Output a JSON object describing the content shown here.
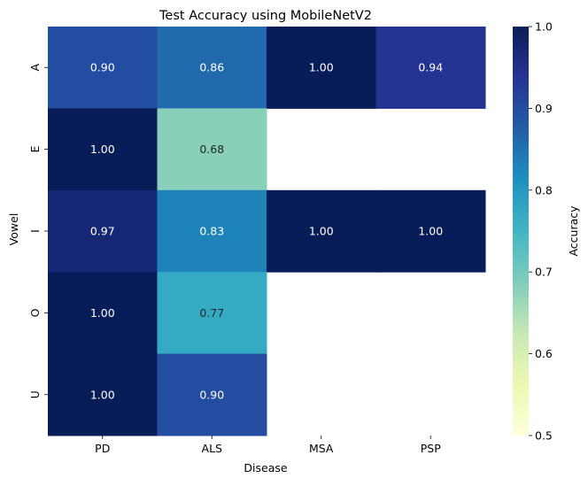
{
  "chart_data": {
    "type": "heatmap",
    "title": "Test Accuracy using MobileNetV2",
    "xlabel": "Disease",
    "ylabel": "Vowel",
    "x_categories": [
      "PD",
      "ALS",
      "MSA",
      "PSP"
    ],
    "y_categories": [
      "A",
      "E",
      "I",
      "O",
      "U"
    ],
    "values": [
      [
        0.9,
        0.86,
        1.0,
        0.94
      ],
      [
        1.0,
        0.68,
        null,
        null
      ],
      [
        0.97,
        0.83,
        1.0,
        1.0
      ],
      [
        1.0,
        0.77,
        null,
        null
      ],
      [
        1.0,
        0.9,
        null,
        null
      ]
    ],
    "colorbar": {
      "label": "Accuracy",
      "range": [
        0.5,
        1.0
      ],
      "ticks": [
        "0.5",
        "0.6",
        "0.7",
        "0.8",
        "0.9",
        "1.0"
      ],
      "colormap": "YlGnBu"
    },
    "grid": false
  }
}
